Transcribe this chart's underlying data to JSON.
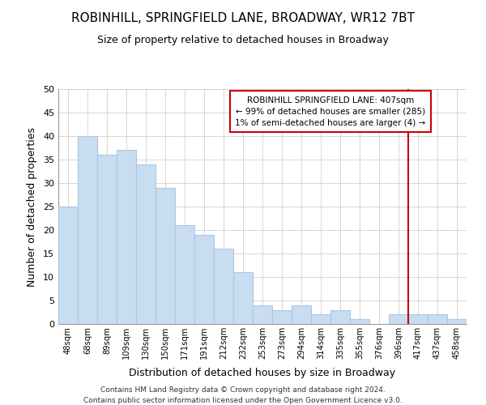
{
  "title": "ROBINHILL, SPRINGFIELD LANE, BROADWAY, WR12 7BT",
  "subtitle": "Size of property relative to detached houses in Broadway",
  "xlabel": "Distribution of detached houses by size in Broadway",
  "ylabel": "Number of detached properties",
  "footer1": "Contains HM Land Registry data © Crown copyright and database right 2024.",
  "footer2": "Contains public sector information licensed under the Open Government Licence v3.0.",
  "categories": [
    "48sqm",
    "68sqm",
    "89sqm",
    "109sqm",
    "130sqm",
    "150sqm",
    "171sqm",
    "191sqm",
    "212sqm",
    "232sqm",
    "253sqm",
    "273sqm",
    "294sqm",
    "314sqm",
    "335sqm",
    "355sqm",
    "376sqm",
    "396sqm",
    "417sqm",
    "437sqm",
    "458sqm"
  ],
  "values": [
    25,
    40,
    36,
    37,
    34,
    29,
    21,
    19,
    16,
    11,
    4,
    3,
    4,
    2,
    3,
    1,
    0,
    2,
    2,
    2,
    1
  ],
  "bar_color": "#c8ddf0",
  "bar_edge_color": "#a8c8e8",
  "ylim": [
    0,
    50
  ],
  "yticks": [
    0,
    5,
    10,
    15,
    20,
    25,
    30,
    35,
    40,
    45,
    50
  ],
  "vline_index": 17,
  "vline_color": "#cc0000",
  "annotation_line1": "ROBINHILL SPRINGFIELD LANE: 407sqm",
  "annotation_line2": "← 99% of detached houses are smaller (285)",
  "annotation_line3": "1% of semi-detached houses are larger (4) →",
  "annotation_box_color": "#cc0000",
  "background_color": "#ffffff",
  "grid_color": "#d0d0d0"
}
